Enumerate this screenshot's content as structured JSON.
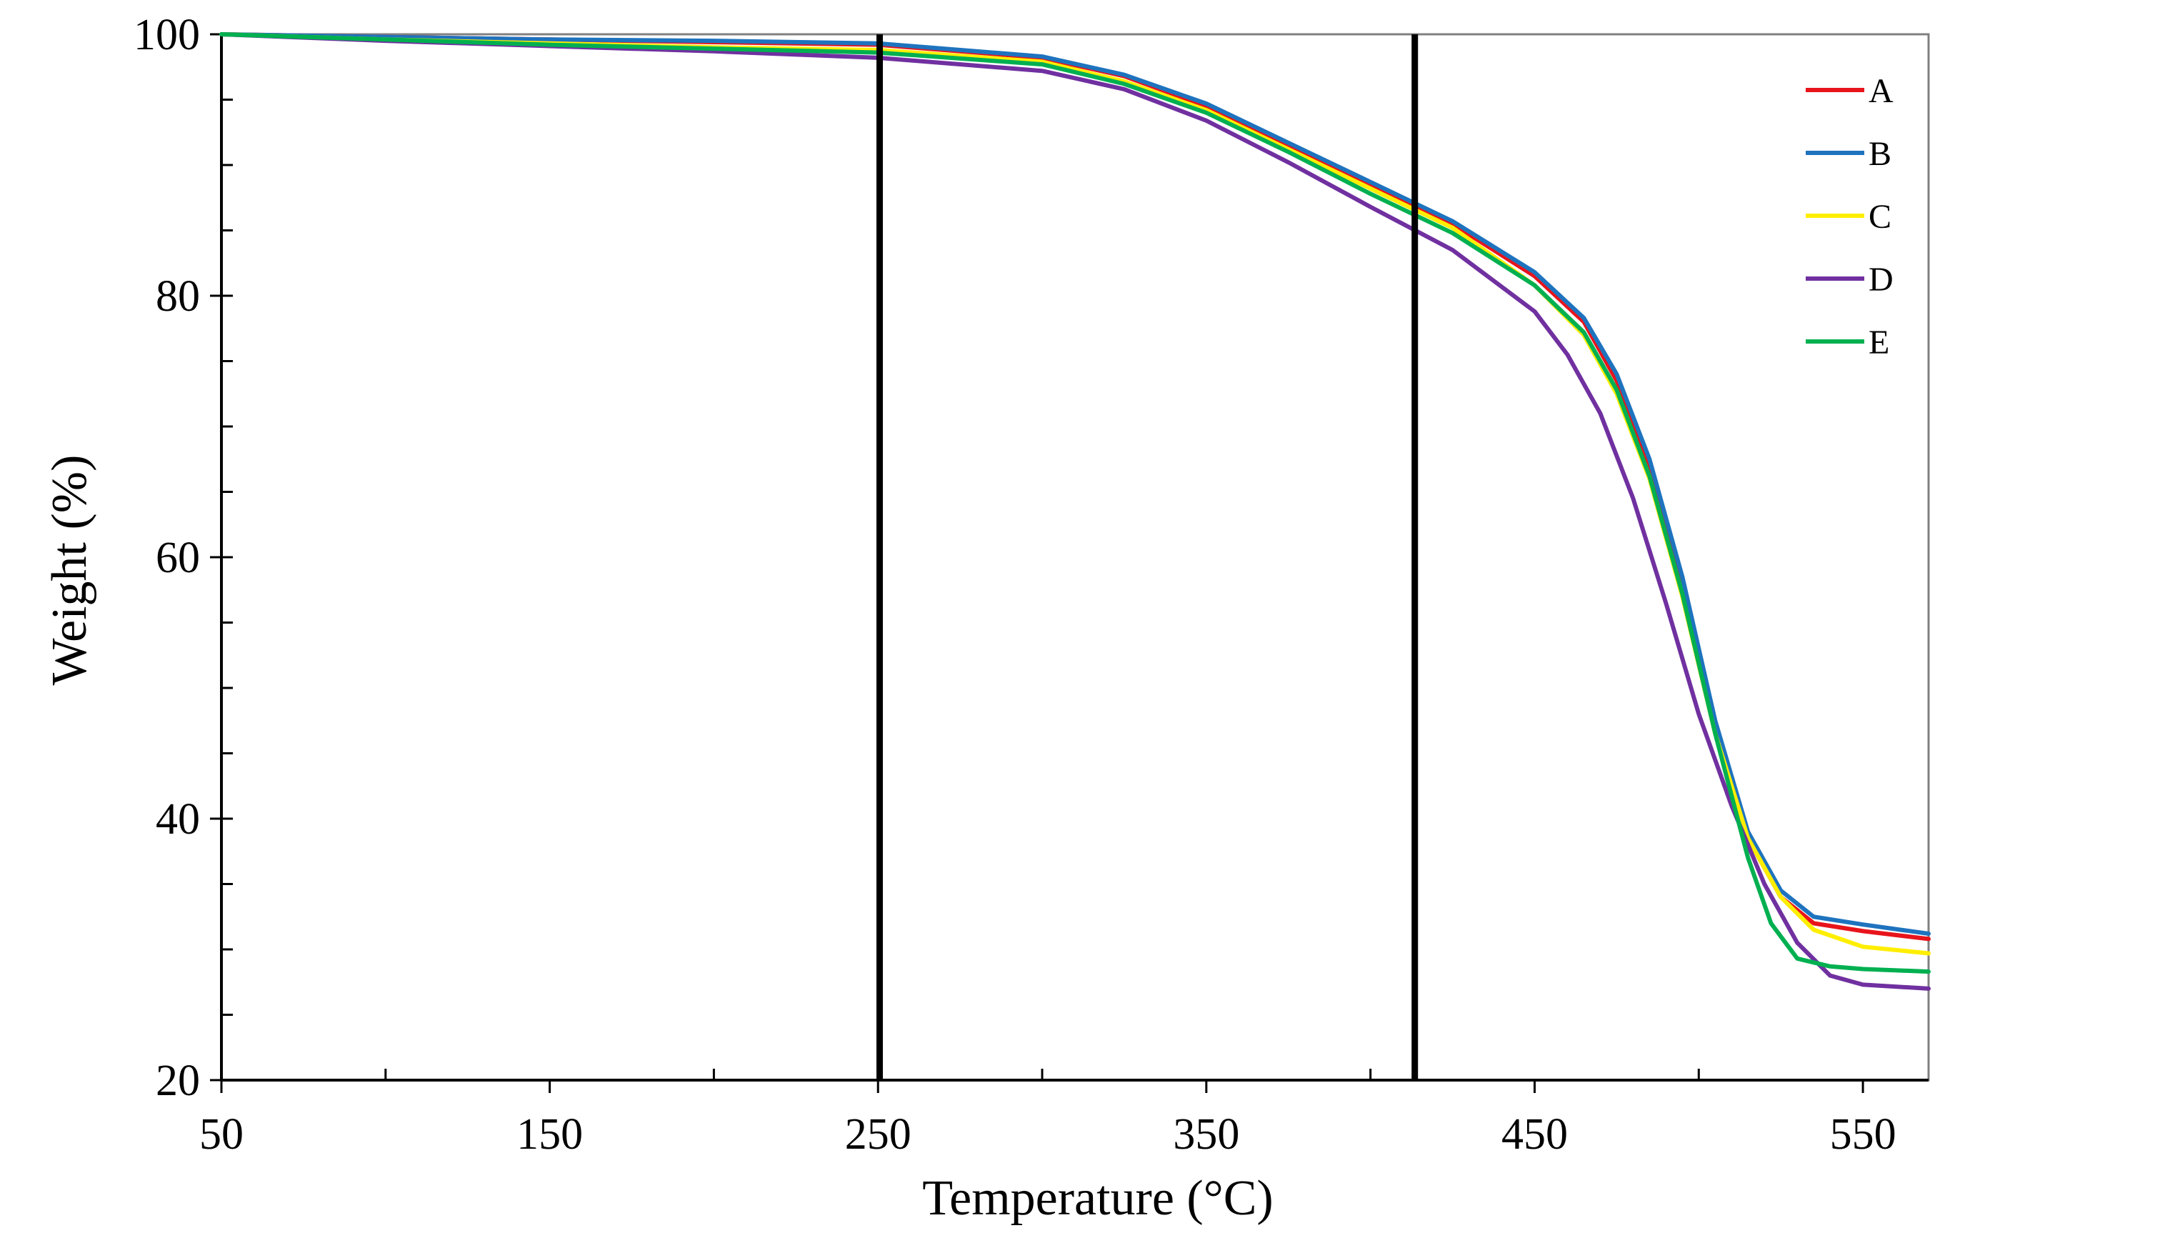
{
  "chart_data": {
    "type": "line",
    "title": "",
    "xlabel": "Temperature (°C)",
    "ylabel": "Weight (%)",
    "xlim": [
      50,
      570
    ],
    "ylim": [
      20,
      100
    ],
    "x_ticks": [
      50,
      150,
      250,
      350,
      450,
      550
    ],
    "x_tick_labels": [
      "50",
      "150",
      "250",
      "350",
      "450",
      "550"
    ],
    "x_minor_ticks": [
      100,
      200,
      300,
      400,
      500
    ],
    "y_ticks": [
      20,
      40,
      60,
      80,
      100
    ],
    "y_tick_labels": [
      "20",
      "40",
      "60",
      "80",
      "100"
    ],
    "y_minor_step": 5,
    "grid": false,
    "legend_position": "top-right",
    "vertical_reference_lines": [
      250.5,
      413.5
    ],
    "series": [
      {
        "name": "A",
        "color": "#e8141b",
        "points": [
          [
            50,
            100
          ],
          [
            100,
            99.8
          ],
          [
            150,
            99.6
          ],
          [
            200,
            99.4
          ],
          [
            250,
            99.2
          ],
          [
            300,
            98.2
          ],
          [
            325,
            96.8
          ],
          [
            350,
            94.5
          ],
          [
            375,
            91.5
          ],
          [
            400,
            88.5
          ],
          [
            425,
            85.5
          ],
          [
            450,
            81.5
          ],
          [
            465,
            78
          ],
          [
            475,
            73.5
          ],
          [
            485,
            67
          ],
          [
            495,
            58
          ],
          [
            505,
            47
          ],
          [
            515,
            38.5
          ],
          [
            525,
            34
          ],
          [
            535,
            32
          ],
          [
            550,
            31.4
          ],
          [
            570,
            30.8
          ]
        ]
      },
      {
        "name": "B",
        "color": "#1e73be",
        "points": [
          [
            50,
            100
          ],
          [
            100,
            99.8
          ],
          [
            150,
            99.6
          ],
          [
            200,
            99.5
          ],
          [
            250,
            99.3
          ],
          [
            300,
            98.3
          ],
          [
            325,
            96.9
          ],
          [
            350,
            94.7
          ],
          [
            375,
            91.7
          ],
          [
            400,
            88.7
          ],
          [
            425,
            85.7
          ],
          [
            450,
            81.8
          ],
          [
            465,
            78.3
          ],
          [
            475,
            74
          ],
          [
            485,
            67.5
          ],
          [
            495,
            58.5
          ],
          [
            505,
            47.5
          ],
          [
            515,
            39
          ],
          [
            525,
            34.5
          ],
          [
            535,
            32.5
          ],
          [
            550,
            31.9
          ],
          [
            570,
            31.2
          ]
        ]
      },
      {
        "name": "C",
        "color": "#ffee00",
        "points": [
          [
            50,
            100
          ],
          [
            100,
            99.6
          ],
          [
            150,
            99.3
          ],
          [
            200,
            99
          ],
          [
            250,
            98.8
          ],
          [
            300,
            97.9
          ],
          [
            325,
            96.4
          ],
          [
            350,
            94.2
          ],
          [
            375,
            91.2
          ],
          [
            400,
            88.2
          ],
          [
            425,
            85.2
          ],
          [
            450,
            80.8
          ],
          [
            465,
            77
          ],
          [
            475,
            72.5
          ],
          [
            485,
            66
          ],
          [
            495,
            57
          ],
          [
            505,
            46.5
          ],
          [
            515,
            38.5
          ],
          [
            525,
            34
          ],
          [
            535,
            31.5
          ],
          [
            550,
            30.2
          ],
          [
            570,
            29.7
          ]
        ]
      },
      {
        "name": "D",
        "color": "#7030a0",
        "points": [
          [
            50,
            100
          ],
          [
            100,
            99.5
          ],
          [
            150,
            99.1
          ],
          [
            200,
            98.7
          ],
          [
            250,
            98.2
          ],
          [
            300,
            97.2
          ],
          [
            325,
            95.8
          ],
          [
            350,
            93.4
          ],
          [
            375,
            90.2
          ],
          [
            400,
            86.8
          ],
          [
            425,
            83.5
          ],
          [
            450,
            78.8
          ],
          [
            460,
            75.5
          ],
          [
            470,
            71
          ],
          [
            480,
            64.5
          ],
          [
            490,
            56.5
          ],
          [
            500,
            48
          ],
          [
            510,
            41
          ],
          [
            520,
            35
          ],
          [
            530,
            30.5
          ],
          [
            540,
            28
          ],
          [
            550,
            27.3
          ],
          [
            570,
            27
          ]
        ]
      },
      {
        "name": "E",
        "color": "#00b050",
        "points": [
          [
            50,
            100
          ],
          [
            100,
            99.6
          ],
          [
            150,
            99.2
          ],
          [
            200,
            98.9
          ],
          [
            250,
            98.6
          ],
          [
            300,
            97.7
          ],
          [
            325,
            96.2
          ],
          [
            350,
            94
          ],
          [
            375,
            91
          ],
          [
            400,
            87.8
          ],
          [
            425,
            84.8
          ],
          [
            450,
            80.8
          ],
          [
            465,
            77.2
          ],
          [
            475,
            72.8
          ],
          [
            485,
            66.2
          ],
          [
            495,
            57.2
          ],
          [
            505,
            46.5
          ],
          [
            515,
            37
          ],
          [
            522,
            32
          ],
          [
            530,
            29.3
          ],
          [
            540,
            28.7
          ],
          [
            550,
            28.5
          ],
          [
            570,
            28.3
          ]
        ]
      }
    ]
  }
}
